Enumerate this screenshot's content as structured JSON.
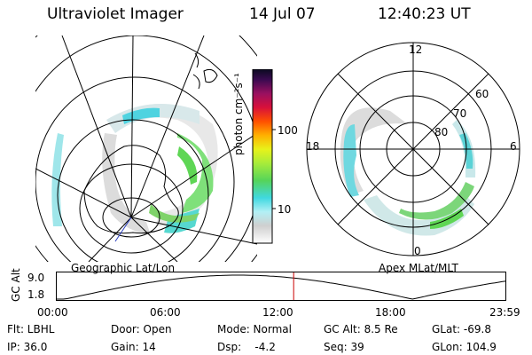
{
  "header": {
    "title": "Ultraviolet Imager",
    "date": "14 Jul 07",
    "time": "12:40:23 UT"
  },
  "left_panel": {
    "label": "Geographic Lat/Lon"
  },
  "right_panel": {
    "label": "Apex  MLat/MLT",
    "mlt_labels": [
      "12",
      "18",
      "6",
      "0"
    ],
    "mlat_labels": [
      "60",
      "70",
      "80"
    ]
  },
  "colorbar": {
    "label": "photon cm⁻²s⁻¹",
    "ticks": [
      "100",
      "10"
    ]
  },
  "altitude_plot": {
    "ylabel": "GC Alt",
    "yticks": [
      "9.0",
      "1.8"
    ],
    "xticks": [
      "00:00",
      "06:00",
      "12:00",
      "18:00",
      "23:59"
    ],
    "current_marker_hour": 12.67,
    "curve_color": "#000000",
    "marker_color": "#cc0000"
  },
  "footer": {
    "row1": [
      {
        "text": "Flt: LBHL"
      },
      {
        "text": "Door: Open"
      },
      {
        "text": "Mode: Normal"
      },
      {
        "text": "GC Alt: 8.5 Re"
      },
      {
        "text": "GLat: -69.8"
      }
    ],
    "row2": [
      {
        "text": "IP: 36.0"
      },
      {
        "text": "Gain: 14"
      },
      {
        "text": "Dsp:    -4.2"
      },
      {
        "text": "Seq: 39"
      },
      {
        "text": "GLon: 104.9"
      }
    ]
  }
}
